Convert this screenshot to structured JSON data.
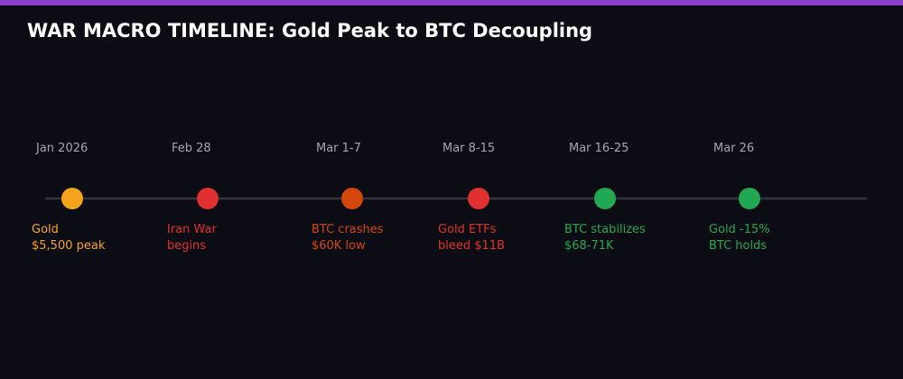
{
  "title": "WAR MACRO TIMELINE: Gold Peak to BTC Decoupling",
  "events": [
    {
      "date": "Jan 2026",
      "lines": [
        "Gold",
        "$5,500 peak"
      ],
      "color": "#f5a31a"
    },
    {
      "date": "Feb 28",
      "lines": [
        "Iran War",
        "begins"
      ],
      "color": "#e0302f"
    },
    {
      "date": "Mar 1-7",
      "lines": [
        "BTC crashes",
        "$60K low"
      ],
      "color": "#d4470c"
    },
    {
      "date": "Mar 8-15",
      "lines": [
        "Gold ETFs",
        "bleed $11B"
      ],
      "color": "#e0302f"
    },
    {
      "date": "Mar 16-25",
      "lines": [
        "BTC stabilizes",
        "$68-71K"
      ],
      "color": "#22a852"
    },
    {
      "date": "Mar 26",
      "lines": [
        "Gold -15%",
        "BTC holds"
      ],
      "color": "#22a852"
    }
  ]
}
